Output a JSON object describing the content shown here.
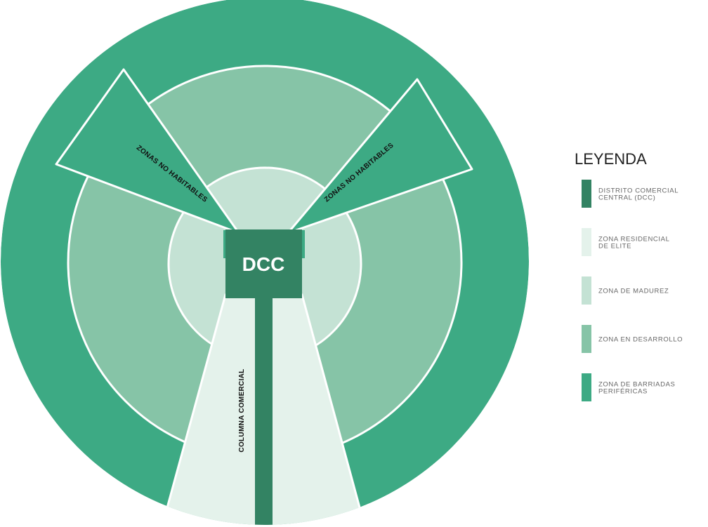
{
  "diagram": {
    "center_label": "DCC",
    "labels": {
      "left_wedge": "ZONAS NO HABITABLES",
      "right_wedge": "ZONAS NO HABITABLES",
      "column": "COLUMNA COMERCIAL"
    },
    "legend": {
      "title": "LEYENDA",
      "items": [
        [
          "DISTRITO COMERCIAL",
          "CENTRAL (DCC)"
        ],
        [
          "ZONA RESIDENCIAL",
          "DE ELITE"
        ],
        [
          "ZONA DE MADUREZ"
        ],
        [
          "ZONA EN DESARROLLO"
        ],
        [
          "ZONA DE BARRIADAS",
          "PERIFÉRICAS"
        ]
      ]
    }
  }
}
